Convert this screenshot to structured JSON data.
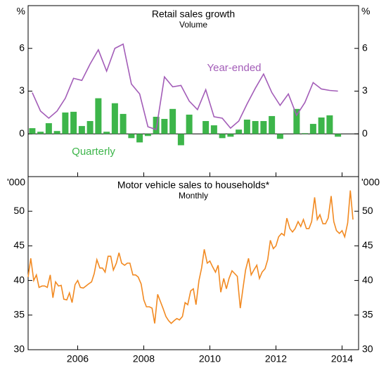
{
  "chart_data": [
    {
      "type": "bar",
      "title": "Retail sales growth",
      "subtitle": "Volume",
      "y_unit": "%",
      "x": [
        2004.625,
        2004.875,
        2005.125,
        2005.375,
        2005.625,
        2005.875,
        2006.125,
        2006.375,
        2006.625,
        2006.875,
        2007.125,
        2007.375,
        2007.625,
        2007.875,
        2008.125,
        2008.375,
        2008.625,
        2008.875,
        2009.125,
        2009.375,
        2009.625,
        2009.875,
        2010.125,
        2010.375,
        2010.625,
        2010.875,
        2011.125,
        2011.375,
        2011.625,
        2011.875,
        2012.125,
        2012.375,
        2012.625,
        2012.875,
        2013.125,
        2013.375,
        2013.625,
        2013.875
      ],
      "series": [
        {
          "name": "Quarterly",
          "type": "bar",
          "color": "#3db54a",
          "values": [
            0.4,
            0.15,
            0.75,
            0.2,
            1.5,
            1.55,
            0.55,
            0.9,
            2.5,
            0.15,
            2.15,
            1.4,
            -0.3,
            -0.6,
            -0.15,
            1.2,
            1.05,
            1.75,
            -0.8,
            1.35,
            0,
            0.9,
            0.6,
            -0.3,
            -0.2,
            0.3,
            1.0,
            0.9,
            0.9,
            1.25,
            -0.35,
            0,
            1.75,
            0.05,
            0.7,
            1.15,
            1.3,
            -0.2
          ]
        },
        {
          "name": "Year-ended",
          "type": "line",
          "color": "#a35db8",
          "values": [
            2.9,
            1.6,
            1.1,
            1.6,
            2.5,
            3.9,
            3.75,
            4.9,
            5.9,
            4.4,
            6.0,
            6.3,
            3.5,
            2.8,
            0.5,
            0.3,
            4.0,
            3.3,
            3.4,
            2.3,
            1.7,
            3.1,
            1.2,
            1.1,
            0.4,
            0.9,
            2.1,
            3.2,
            4.2,
            2.9,
            2.0,
            2.8,
            1.3,
            2.2,
            3.6,
            3.15,
            3.05,
            3.0
          ]
        }
      ],
      "xlim": [
        2004.5,
        2014.5
      ],
      "xticks": [
        2006,
        2008,
        2010,
        2012,
        2014
      ],
      "ylim": [
        -3,
        9
      ],
      "yticks": [
        0,
        3,
        6
      ]
    },
    {
      "type": "line",
      "title": "Motor vehicle sales to households*",
      "subtitle": "Monthly",
      "y_unit": "'000",
      "series": [
        {
          "name": "Monthly",
          "color": "#f28a22",
          "x": [
            2004.5,
            2004.58,
            2004.67,
            2004.75,
            2004.83,
            2004.92,
            2005.0,
            2005.08,
            2005.17,
            2005.25,
            2005.33,
            2005.42,
            2005.5,
            2005.58,
            2005.67,
            2005.75,
            2005.83,
            2005.92,
            2006.0,
            2006.08,
            2006.17,
            2006.25,
            2006.33,
            2006.42,
            2006.5,
            2006.58,
            2006.67,
            2006.75,
            2006.83,
            2006.92,
            2007.0,
            2007.08,
            2007.17,
            2007.25,
            2007.33,
            2007.42,
            2007.5,
            2007.58,
            2007.67,
            2007.75,
            2007.83,
            2007.92,
            2008.0,
            2008.08,
            2008.17,
            2008.25,
            2008.33,
            2008.42,
            2008.5,
            2008.58,
            2008.67,
            2008.75,
            2008.83,
            2008.92,
            2009.0,
            2009.08,
            2009.17,
            2009.25,
            2009.33,
            2009.42,
            2009.5,
            2009.58,
            2009.67,
            2009.75,
            2009.83,
            2009.92,
            2010.0,
            2010.08,
            2010.17,
            2010.25,
            2010.33,
            2010.42,
            2010.5,
            2010.58,
            2010.67,
            2010.75,
            2010.83,
            2010.92,
            2011.0,
            2011.08,
            2011.17,
            2011.25,
            2011.33,
            2011.42,
            2011.5,
            2011.58,
            2011.67,
            2011.75,
            2011.83,
            2011.92,
            2012.0,
            2012.08,
            2012.17,
            2012.25,
            2012.33,
            2012.42,
            2012.5,
            2012.58,
            2012.67,
            2012.75,
            2012.83,
            2012.92,
            2013.0,
            2013.08,
            2013.17,
            2013.25,
            2013.33,
            2013.42,
            2013.5,
            2013.58,
            2013.67,
            2013.75,
            2013.83,
            2013.92,
            2014.0,
            2014.08,
            2014.17,
            2014.25,
            2014.33
          ],
          "values": [
            40.5,
            43.2,
            40,
            40.8,
            39,
            39.2,
            39.2,
            39,
            40.8,
            37.5,
            39.8,
            39.2,
            39.3,
            37.3,
            37.2,
            38.2,
            36.8,
            39.4,
            40,
            39,
            38.9,
            39.2,
            39.5,
            39.8,
            41,
            43,
            41.8,
            41.8,
            41.2,
            43.5,
            43.5,
            41.5,
            42.5,
            44,
            42.5,
            42.2,
            42.5,
            42.5,
            40.8,
            40.8,
            40.5,
            39.5,
            37.2,
            36.2,
            36.2,
            36,
            33.8,
            38,
            37,
            36,
            34.8,
            34.2,
            33.8,
            34.2,
            34.5,
            34.3,
            34.8,
            36.8,
            36.5,
            38.5,
            38.8,
            36.5,
            40,
            41.8,
            44.5,
            42.5,
            42.8,
            42,
            41.2,
            42.2,
            38.3,
            40.3,
            38.8,
            40.3,
            41.4,
            41.0,
            40.6,
            36,
            38.8,
            41.5,
            43.2,
            40.8,
            41.5,
            42.2,
            40.3,
            41.2,
            41.7,
            43.0,
            45.8,
            44.6,
            45,
            46.3,
            46.8,
            46.5,
            49,
            47.5,
            47.0,
            47.5,
            48.5,
            47.8,
            48.8,
            47.5,
            47.5,
            48.5,
            52,
            48.8,
            49.5,
            48.2,
            48.2,
            49,
            52.2,
            48.5,
            47.2,
            46.8,
            47.2,
            46.3,
            48.3,
            53,
            48.8
          ]
        }
      ],
      "xlim": [
        2004.5,
        2014.5
      ],
      "xticks": [
        2006,
        2008,
        2010,
        2012,
        2014
      ],
      "ylim": [
        30,
        55
      ],
      "yticks": [
        30,
        35,
        40,
        45,
        50
      ]
    }
  ]
}
